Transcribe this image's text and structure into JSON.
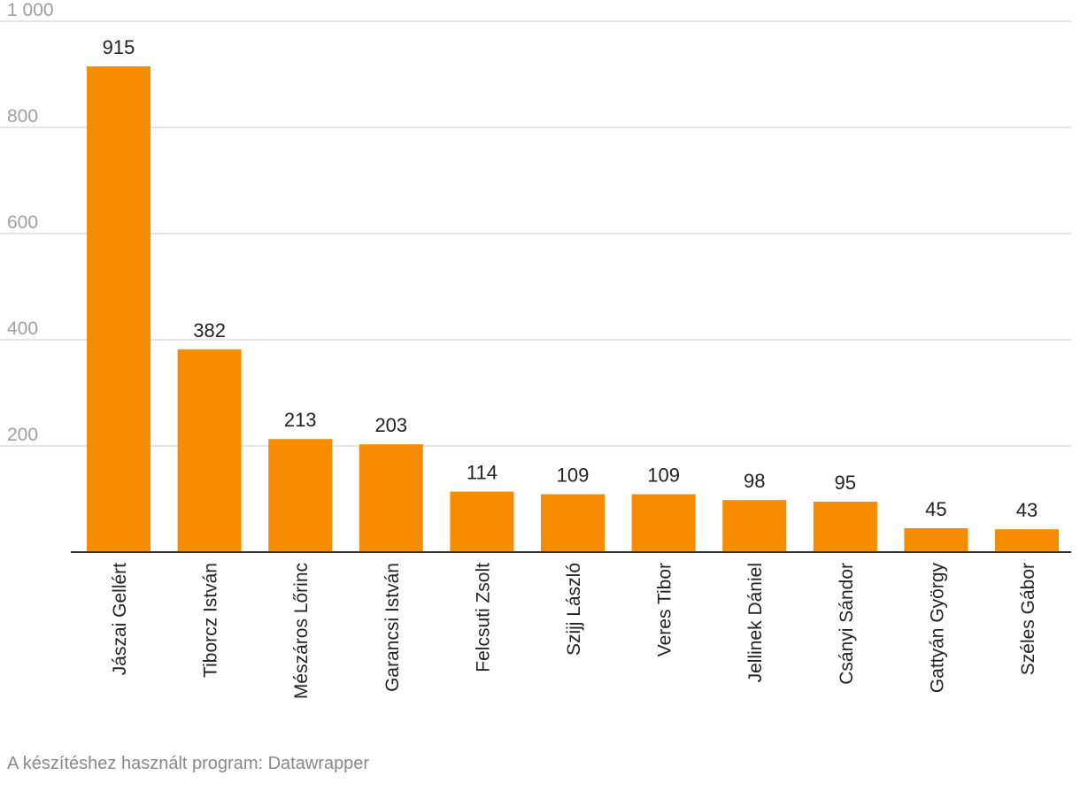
{
  "colors": {
    "bar": "#f78c00",
    "grid": "#dedede",
    "axis": "#333333",
    "tick_text": "#a0a0a0",
    "label_text": "#222222",
    "footer_text": "#888888"
  },
  "chart_data": {
    "type": "bar",
    "title": "",
    "xlabel": "",
    "ylabel": "",
    "categories": [
      "Jászai Gellért",
      "Tiborcz István",
      "Mészáros Lőrinc",
      "Garancsi István",
      "Felcsuti Zsolt",
      "Szijj László",
      "Veres Tibor",
      "Jellinek Dániel",
      "Csányi Sándor",
      "Gattyán György",
      "Széles Gábor"
    ],
    "values": [
      915,
      382,
      213,
      203,
      114,
      109,
      109,
      98,
      95,
      45,
      43
    ],
    "value_labels": [
      "915",
      "382",
      "213",
      "203",
      "114",
      "109",
      "109",
      "98",
      "95",
      "45",
      "43"
    ],
    "ylim": [
      0,
      1000
    ],
    "yticks": [
      200,
      400,
      600,
      800,
      1000
    ],
    "ytick_labels": [
      "200",
      "400",
      "600",
      "800",
      "1 000"
    ],
    "grid": true,
    "legend": "none"
  },
  "footer": {
    "credit": "A készítéshez használt program: Datawrapper"
  }
}
